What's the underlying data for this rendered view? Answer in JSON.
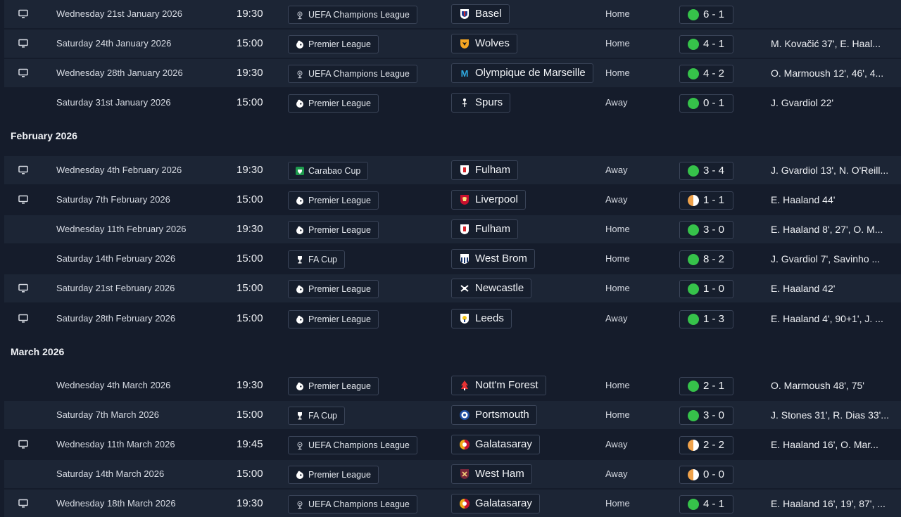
{
  "colors": {
    "background": "#151c2b",
    "row_shade": "#1c2535",
    "win": "#36c24a",
    "draw": "#f0a24a"
  },
  "months": [
    {
      "label": "February 2026"
    },
    {
      "label": "March 2026"
    }
  ],
  "matches": [
    {
      "tv": true,
      "date": "Wednesday 21st January 2026",
      "time": "19:30",
      "competition": "UEFA Champions League",
      "comp_icon": "ucl-icon",
      "opponent": "Basel",
      "badge": "basel-badge-icon",
      "venue": "Home",
      "result": "6 - 1",
      "outcome": "win",
      "scorers": ""
    },
    {
      "tv": true,
      "date": "Saturday 24th January 2026",
      "time": "15:00",
      "competition": "Premier League",
      "comp_icon": "premier-league-icon",
      "opponent": "Wolves",
      "badge": "wolves-badge-icon",
      "venue": "Home",
      "result": "4 - 1",
      "outcome": "win",
      "scorers": "M. Kovačić 37', E. Haal..."
    },
    {
      "tv": true,
      "date": "Wednesday 28th January 2026",
      "time": "19:30",
      "competition": "UEFA Champions League",
      "comp_icon": "ucl-icon",
      "opponent": "Olympique de Marseille",
      "badge": "marseille-badge-icon",
      "venue": "Home",
      "result": "4 - 2",
      "outcome": "win",
      "scorers": "O. Marmoush 12', 46', 4..."
    },
    {
      "tv": false,
      "date": "Saturday 31st January 2026",
      "time": "15:00",
      "competition": "Premier League",
      "comp_icon": "premier-league-icon",
      "opponent": "Spurs",
      "badge": "spurs-badge-icon",
      "venue": "Away",
      "result": "0 - 1",
      "outcome": "win",
      "scorers": "J. Gvardiol 22'"
    },
    {
      "tv": true,
      "date": "Wednesday 4th February 2026",
      "time": "19:30",
      "competition": "Carabao Cup",
      "comp_icon": "carabao-cup-icon",
      "opponent": "Fulham",
      "badge": "fulham-badge-icon",
      "venue": "Away",
      "result": "3 - 4",
      "outcome": "win",
      "scorers": "J. Gvardiol 13', N. O'Reill..."
    },
    {
      "tv": true,
      "date": "Saturday 7th February 2026",
      "time": "15:00",
      "competition": "Premier League",
      "comp_icon": "premier-league-icon",
      "opponent": "Liverpool",
      "badge": "liverpool-badge-icon",
      "venue": "Away",
      "result": "1 - 1",
      "outcome": "draw",
      "scorers": "E. Haaland 44'"
    },
    {
      "tv": false,
      "date": "Wednesday 11th February 2026",
      "time": "19:30",
      "competition": "Premier League",
      "comp_icon": "premier-league-icon",
      "opponent": "Fulham",
      "badge": "fulham-badge-icon",
      "venue": "Home",
      "result": "3 - 0",
      "outcome": "win",
      "scorers": "E. Haaland 8', 27', O. M..."
    },
    {
      "tv": false,
      "date": "Saturday 14th February 2026",
      "time": "15:00",
      "competition": "FA Cup",
      "comp_icon": "fa-cup-icon",
      "opponent": "West Brom",
      "badge": "west-brom-badge-icon",
      "venue": "Home",
      "result": "8 - 2",
      "outcome": "win",
      "scorers": "J. Gvardiol 7', Savinho ..."
    },
    {
      "tv": true,
      "date": "Saturday 21st February 2026",
      "time": "15:00",
      "competition": "Premier League",
      "comp_icon": "premier-league-icon",
      "opponent": "Newcastle",
      "badge": "newcastle-badge-icon",
      "venue": "Home",
      "result": "1 - 0",
      "outcome": "win",
      "scorers": "E. Haaland 42'"
    },
    {
      "tv": true,
      "date": "Saturday 28th February 2026",
      "time": "15:00",
      "competition": "Premier League",
      "comp_icon": "premier-league-icon",
      "opponent": "Leeds",
      "badge": "leeds-badge-icon",
      "venue": "Away",
      "result": "1 - 3",
      "outcome": "win",
      "scorers": "E. Haaland 4', 90+1', J. ..."
    },
    {
      "tv": false,
      "date": "Wednesday 4th March 2026",
      "time": "19:30",
      "competition": "Premier League",
      "comp_icon": "premier-league-icon",
      "opponent": "Nott'm Forest",
      "badge": "forest-badge-icon",
      "venue": "Home",
      "result": "2 - 1",
      "outcome": "win",
      "scorers": "O. Marmoush 48', 75'"
    },
    {
      "tv": false,
      "date": "Saturday 7th March 2026",
      "time": "15:00",
      "competition": "FA Cup",
      "comp_icon": "fa-cup-icon",
      "opponent": "Portsmouth",
      "badge": "portsmouth-badge-icon",
      "venue": "Home",
      "result": "3 - 0",
      "outcome": "win",
      "scorers": "J. Stones 31', R. Dias 33'..."
    },
    {
      "tv": true,
      "date": "Wednesday 11th March 2026",
      "time": "19:45",
      "competition": "UEFA Champions League",
      "comp_icon": "ucl-icon",
      "opponent": "Galatasaray",
      "badge": "galatasaray-badge-icon",
      "venue": "Away",
      "result": "2 - 2",
      "outcome": "draw",
      "scorers": "E. Haaland 16', O. Mar..."
    },
    {
      "tv": false,
      "date": "Saturday 14th March 2026",
      "time": "15:00",
      "competition": "Premier League",
      "comp_icon": "premier-league-icon",
      "opponent": "West Ham",
      "badge": "west-ham-badge-icon",
      "venue": "Away",
      "result": "0 - 0",
      "outcome": "draw",
      "scorers": ""
    },
    {
      "tv": true,
      "date": "Wednesday 18th March 2026",
      "time": "19:30",
      "competition": "UEFA Champions League",
      "comp_icon": "ucl-icon",
      "opponent": "Galatasaray",
      "badge": "galatasaray-badge-icon",
      "venue": "Home",
      "result": "4 - 1",
      "outcome": "win",
      "scorers": "E. Haaland 16', 19', 87', ..."
    }
  ]
}
